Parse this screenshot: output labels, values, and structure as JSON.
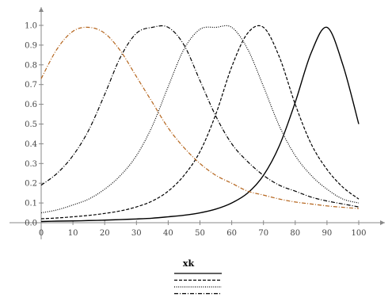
{
  "chart_data": {
    "type": "line",
    "title": "",
    "xlabel": "",
    "ylabel": "",
    "xlim": [
      0,
      100
    ],
    "ylim": [
      0,
      1.0
    ],
    "x_ticks": [
      "0",
      "10",
      "20",
      "30",
      "40",
      "50",
      "60",
      "70",
      "80",
      "90",
      "100"
    ],
    "y_ticks": [
      "0.0",
      "0.1",
      "0.2",
      "0.3",
      "0.4",
      "0.5",
      "0.6",
      "0.7",
      "0.8",
      "0.9",
      "1.0"
    ],
    "grid": false,
    "legend": {
      "placement": "bottom-center",
      "title": "xk"
    },
    "x": [
      0,
      5,
      10,
      15,
      20,
      25,
      30,
      35,
      40,
      45,
      50,
      55,
      60,
      65,
      70,
      75,
      80,
      85,
      90,
      95,
      100
    ],
    "series": [
      {
        "line_style": "solid",
        "color": "#000000",
        "values": [
          0.006,
          0.008,
          0.009,
          0.011,
          0.013,
          0.016,
          0.019,
          0.023,
          0.03,
          0.038,
          0.05,
          0.069,
          0.1,
          0.15,
          0.24,
          0.39,
          0.61,
          0.86,
          0.99,
          0.8,
          0.5
        ]
      },
      {
        "line_style": "dashed",
        "color": "#000000",
        "values": [
          0.02,
          0.024,
          0.03,
          0.037,
          0.047,
          0.06,
          0.08,
          0.11,
          0.16,
          0.24,
          0.36,
          0.55,
          0.79,
          0.96,
          0.99,
          0.84,
          0.6,
          0.4,
          0.27,
          0.18,
          0.12
        ]
      },
      {
        "line_style": "dotted",
        "color": "#000000",
        "values": [
          0.05,
          0.065,
          0.09,
          0.12,
          0.17,
          0.24,
          0.34,
          0.49,
          0.69,
          0.88,
          0.98,
          0.99,
          0.99,
          0.88,
          0.69,
          0.49,
          0.34,
          0.24,
          0.17,
          0.12,
          0.1
        ]
      },
      {
        "line_style": "dash-dot",
        "color": "#000000",
        "values": [
          0.19,
          0.25,
          0.34,
          0.47,
          0.65,
          0.84,
          0.96,
          0.99,
          0.99,
          0.9,
          0.72,
          0.54,
          0.4,
          0.31,
          0.24,
          0.19,
          0.16,
          0.13,
          0.11,
          0.095,
          0.08
        ]
      },
      {
        "line_style": "dash-dot",
        "color": "#b5651d",
        "values": [
          0.73,
          0.88,
          0.97,
          0.99,
          0.96,
          0.87,
          0.74,
          0.61,
          0.48,
          0.38,
          0.3,
          0.24,
          0.2,
          0.16,
          0.14,
          0.12,
          0.105,
          0.095,
          0.085,
          0.078,
          0.072
        ]
      }
    ]
  }
}
